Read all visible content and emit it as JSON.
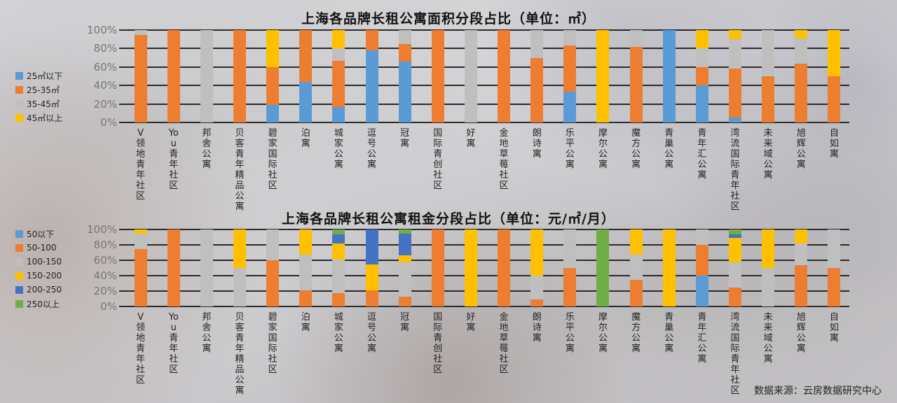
{
  "source": "数据来源：云房数据研究中心",
  "colors": {
    "blue_light": "#5b9bd5",
    "orange": "#ed7d31",
    "gray": "#bfbfbf",
    "yellow": "#ffc000",
    "blue_dark": "#4472c4",
    "green": "#70ad47"
  },
  "chart_data": [
    {
      "type": "bar",
      "stacked": true,
      "title": "上海各品牌长租公寓面积分段占比（单位：㎡）",
      "xlabel": "",
      "ylabel": "",
      "ylim": [
        0,
        100
      ],
      "yticks": [
        "0%",
        "20%",
        "40%",
        "60%",
        "80%",
        "100%"
      ],
      "legend_position": "left",
      "categories": [
        "V领地青年社区",
        "You青年社区",
        "邦舍公寓",
        "贝客青年精品公寓",
        "碧家国际社区",
        "泊寓",
        "城家公寓",
        "逗号公寓",
        "冠寓",
        "国际青创社区",
        "好寓",
        "金地草莓社区",
        "朗诗寓",
        "乐平公寓",
        "摩尔公寓",
        "魔方公寓",
        "青巢公寓",
        "青年汇公寓",
        "湾流国际青年社区",
        "未来域公寓",
        "旭辉公寓",
        "自如寓"
      ],
      "series": [
        {
          "name": "25㎡以下",
          "color": "#5b9bd5",
          "values": [
            0,
            0,
            0,
            0,
            19,
            44,
            17,
            78,
            66,
            0,
            0,
            0,
            0,
            33,
            0,
            0,
            100,
            40,
            5,
            0,
            0,
            0
          ]
        },
        {
          "name": "25-35㎡",
          "color": "#ed7d31",
          "values": [
            95,
            100,
            0,
            100,
            41,
            56,
            50,
            22,
            19,
            100,
            0,
            100,
            70,
            50,
            0,
            82,
            0,
            20,
            53,
            50,
            64,
            50
          ]
        },
        {
          "name": "35-45㎡",
          "color": "#bfbfbf",
          "values": [
            5,
            0,
            100,
            0,
            0,
            0,
            13,
            0,
            15,
            0,
            100,
            0,
            30,
            17,
            0,
            18,
            0,
            20,
            32,
            50,
            27,
            0
          ]
        },
        {
          "name": "45㎡以上",
          "color": "#ffc000",
          "values": [
            0,
            0,
            0,
            0,
            40,
            0,
            20,
            0,
            0,
            0,
            0,
            0,
            0,
            0,
            100,
            0,
            0,
            20,
            10,
            0,
            9,
            50
          ]
        }
      ]
    },
    {
      "type": "bar",
      "stacked": true,
      "title": "上海各品牌长租公寓租金分段占比（单位：元/㎡/月）",
      "xlabel": "",
      "ylabel": "",
      "ylim": [
        0,
        100
      ],
      "yticks": [
        "0%",
        "20%",
        "40%",
        "60%",
        "80%",
        "100%"
      ],
      "legend_position": "left",
      "categories": [
        "V领地青年社区",
        "You青年社区",
        "邦舍公寓",
        "贝客青年精品公寓",
        "碧家国际社区",
        "泊寓",
        "城家公寓",
        "逗号公寓",
        "冠寓",
        "国际青创社区",
        "好寓",
        "金地草莓社区",
        "朗诗寓",
        "乐平公寓",
        "摩尔公寓",
        "魔方公寓",
        "青巢公寓",
        "青年汇公寓",
        "湾流国际青年社区",
        "未来域公寓",
        "旭辉公寓",
        "自如寓"
      ],
      "series": [
        {
          "name": "50以下",
          "color": "#5b9bd5",
          "values": [
            0,
            0,
            0,
            0,
            0,
            0,
            0,
            0,
            0,
            0,
            0,
            0,
            0,
            0,
            0,
            0,
            0,
            40,
            0,
            0,
            0,
            0
          ]
        },
        {
          "name": "50-100",
          "color": "#ed7d31",
          "values": [
            75,
            100,
            0,
            0,
            60,
            21,
            17,
            21,
            13,
            100,
            0,
            100,
            9,
            50,
            0,
            35,
            0,
            40,
            25,
            0,
            54,
            50
          ]
        },
        {
          "name": "100-150",
          "color": "#bfbfbf",
          "values": [
            20,
            0,
            100,
            50,
            40,
            46,
            44,
            0,
            44,
            0,
            0,
            0,
            31,
            50,
            0,
            32,
            0,
            20,
            32,
            50,
            28,
            50
          ]
        },
        {
          "name": "150-200",
          "color": "#ffc000",
          "values": [
            5,
            0,
            0,
            50,
            0,
            33,
            21,
            34,
            9,
            0,
            100,
            0,
            60,
            0,
            0,
            33,
            100,
            0,
            32,
            50,
            18,
            0
          ]
        },
        {
          "name": "200-250",
          "color": "#4472c4",
          "values": [
            0,
            0,
            0,
            0,
            0,
            0,
            12,
            45,
            29,
            0,
            0,
            0,
            0,
            0,
            0,
            0,
            0,
            0,
            5,
            0,
            0,
            0
          ]
        },
        {
          "name": "250以上",
          "color": "#70ad47",
          "values": [
            0,
            0,
            0,
            0,
            0,
            0,
            6,
            0,
            5,
            0,
            0,
            0,
            0,
            0,
            100,
            0,
            0,
            0,
            6,
            0,
            0,
            0
          ]
        }
      ]
    }
  ]
}
